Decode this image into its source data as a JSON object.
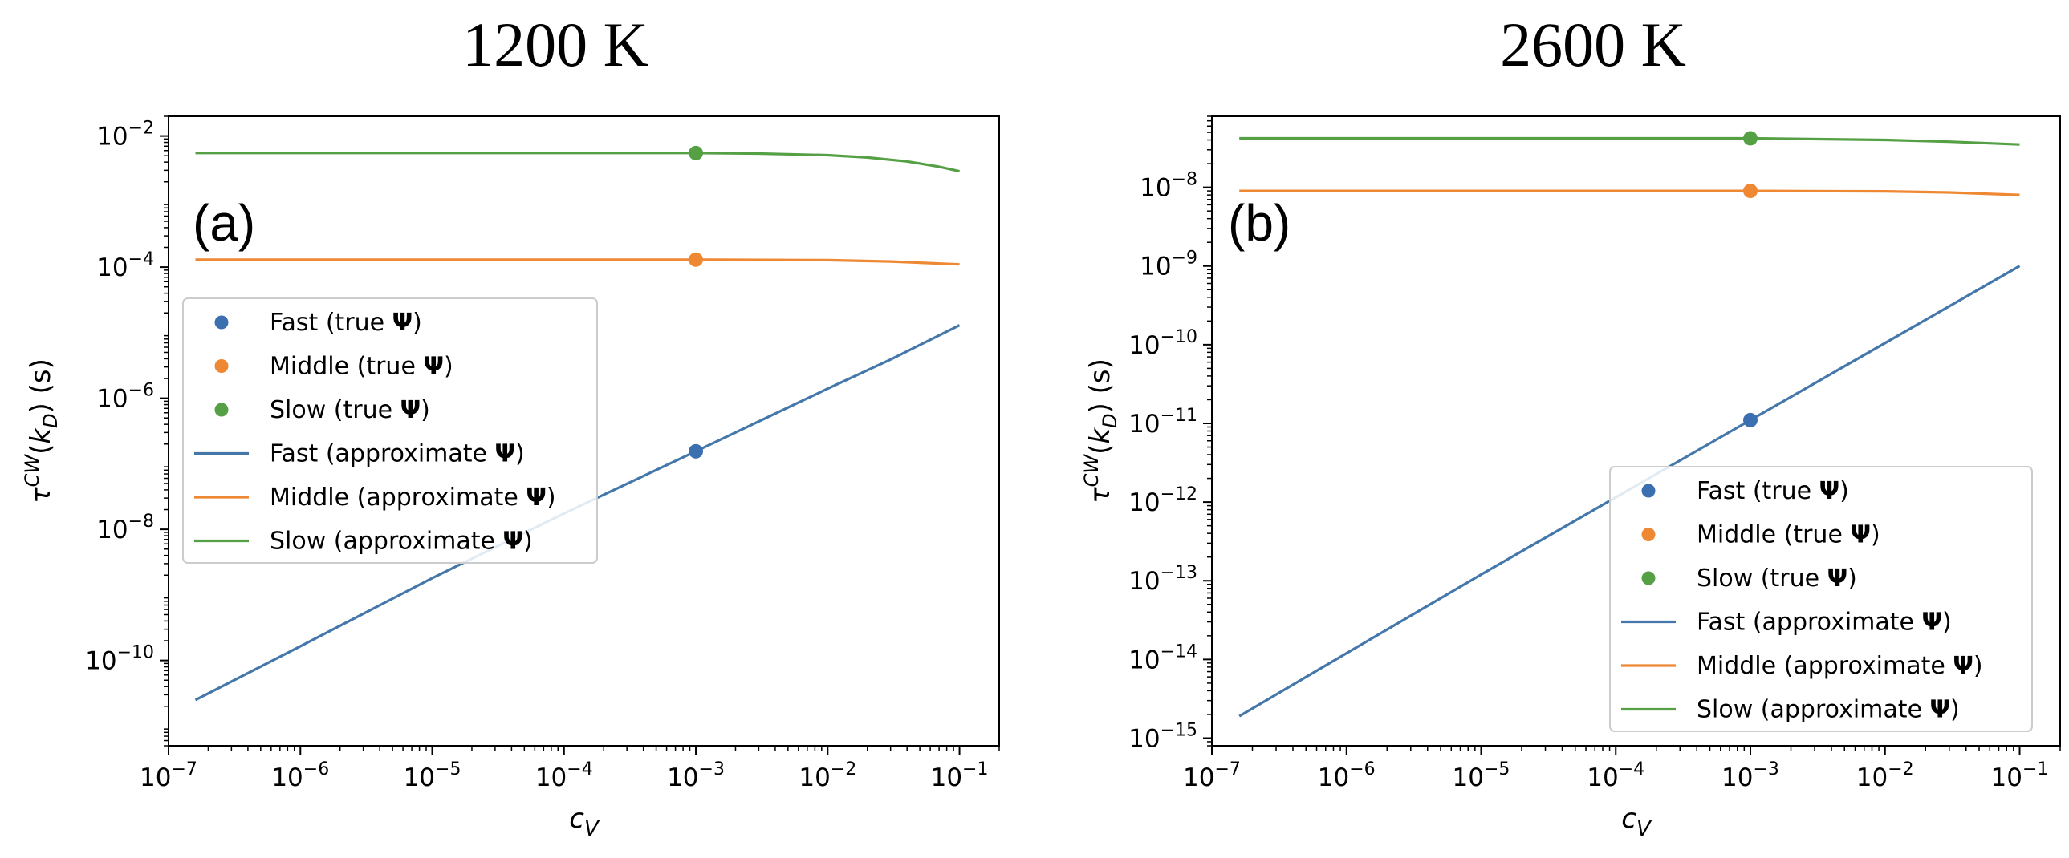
{
  "chart_data": [
    {
      "type": "line",
      "title": "1200 K",
      "panel_label": "(a)",
      "xlabel_base": "c",
      "xlabel_sub": "V",
      "ylabel": "τ^{CW}(k_D) (s)",
      "ylabel_parts": {
        "base": "τ",
        "sup": "CW",
        "open": "(",
        "vec": "k",
        "sub": "D",
        "close": ") (s)"
      },
      "xscale": "log",
      "yscale": "log",
      "xlim": [
        1e-07,
        0.2
      ],
      "ylim": [
        5e-12,
        0.02
      ],
      "xticks": [
        {
          "base": "10",
          "exp": "−7",
          "value": 1e-07
        },
        {
          "base": "10",
          "exp": "−6",
          "value": 1e-06
        },
        {
          "base": "10",
          "exp": "−5",
          "value": 1e-05
        },
        {
          "base": "10",
          "exp": "−4",
          "value": 0.0001
        },
        {
          "base": "10",
          "exp": "−3",
          "value": 0.001
        },
        {
          "base": "10",
          "exp": "−2",
          "value": 0.01
        },
        {
          "base": "10",
          "exp": "−1",
          "value": 0.1
        }
      ],
      "yticks": [
        {
          "base": "10",
          "exp": "−10",
          "value": 1e-10
        },
        {
          "base": "10",
          "exp": "−8",
          "value": 1e-08
        },
        {
          "base": "10",
          "exp": "−6",
          "value": 1e-06
        },
        {
          "base": "10",
          "exp": "−4",
          "value": 0.0001
        },
        {
          "base": "10",
          "exp": "−2",
          "value": 0.01
        }
      ],
      "series": [
        {
          "name": "Fast (approximate Ψ)",
          "label": "Fast (approximate ",
          "color": "#4477aa",
          "kind": "line",
          "x": [
            1.6e-07,
            1e-06,
            1e-05,
            0.0001,
            0.001,
            0.01,
            0.03,
            0.1
          ],
          "y": [
            2.5e-11,
            1.65e-10,
            1.8e-09,
            1.75e-08,
            1.55e-07,
            1.4e-06,
            3.9e-06,
            1.3e-05
          ]
        },
        {
          "name": "Middle (approximate Ψ)",
          "label": "Middle (approximate ",
          "color": "#ee8833",
          "kind": "line",
          "x": [
            1.6e-07,
            1e-05,
            0.0001,
            0.001,
            0.01,
            0.03,
            0.1
          ],
          "y": [
            0.00013,
            0.00013,
            0.00013,
            0.00013,
            0.000128,
            0.000122,
            0.00011
          ]
        },
        {
          "name": "Slow (approximate Ψ)",
          "label": "Slow (approximate ",
          "color": "#55a045",
          "kind": "line",
          "x": [
            1.6e-07,
            1e-05,
            0.0001,
            0.001,
            0.003,
            0.01,
            0.02,
            0.04,
            0.07,
            0.1
          ],
          "y": [
            0.0055,
            0.0055,
            0.0055,
            0.0055,
            0.0054,
            0.0051,
            0.0047,
            0.0041,
            0.0034,
            0.0029
          ]
        },
        {
          "name": "Fast (true Ψ)",
          "label": "Fast (true ",
          "color": "#3b6fb0",
          "kind": "point",
          "x": [
            0.001
          ],
          "y": [
            1.55e-07
          ]
        },
        {
          "name": "Middle (true Ψ)",
          "label": "Middle (true ",
          "color": "#ee8833",
          "kind": "point",
          "x": [
            0.001
          ],
          "y": [
            0.00013
          ]
        },
        {
          "name": "Slow (true Ψ)",
          "label": "Slow (true ",
          "color": "#55a045",
          "kind": "point",
          "x": [
            0.001
          ],
          "y": [
            0.0055
          ]
        }
      ],
      "legend_order": [
        3,
        4,
        5,
        0,
        1,
        2
      ],
      "legend_symbol": "Ψ",
      "legend_close": ")",
      "legend_position": "center-left"
    },
    {
      "type": "line",
      "title": "2600 K",
      "panel_label": "(b)",
      "xlabel_base": "c",
      "xlabel_sub": "V",
      "ylabel": "τ^{CW}(k_D) (s)",
      "ylabel_parts": {
        "base": "τ",
        "sup": "CW",
        "open": "(",
        "vec": "k",
        "sub": "D",
        "close": ") (s)"
      },
      "xscale": "log",
      "yscale": "log",
      "xlim": [
        1e-07,
        0.2
      ],
      "ylim": [
        8e-16,
        8e-08
      ],
      "xticks": [
        {
          "base": "10",
          "exp": "−7",
          "value": 1e-07
        },
        {
          "base": "10",
          "exp": "−6",
          "value": 1e-06
        },
        {
          "base": "10",
          "exp": "−5",
          "value": 1e-05
        },
        {
          "base": "10",
          "exp": "−4",
          "value": 0.0001
        },
        {
          "base": "10",
          "exp": "−3",
          "value": 0.001
        },
        {
          "base": "10",
          "exp": "−2",
          "value": 0.01
        },
        {
          "base": "10",
          "exp": "−1",
          "value": 0.1
        }
      ],
      "yticks": [
        {
          "base": "10",
          "exp": "−15",
          "value": 1e-15
        },
        {
          "base": "10",
          "exp": "−14",
          "value": 1e-14
        },
        {
          "base": "10",
          "exp": "−13",
          "value": 1e-13
        },
        {
          "base": "10",
          "exp": "−12",
          "value": 1e-12
        },
        {
          "base": "10",
          "exp": "−11",
          "value": 1e-11
        },
        {
          "base": "10",
          "exp": "−10",
          "value": 1e-10
        },
        {
          "base": "10",
          "exp": "−9",
          "value": 1e-09
        },
        {
          "base": "10",
          "exp": "−8",
          "value": 1e-08
        }
      ],
      "series": [
        {
          "name": "Fast (approximate Ψ)",
          "label": "Fast (approximate ",
          "color": "#4477aa",
          "kind": "line",
          "x": [
            1.6e-07,
            1e-06,
            1e-05,
            0.0001,
            0.001,
            0.01,
            0.1
          ],
          "y": [
            1.9e-15,
            1.2e-14,
            1.2e-13,
            1.15e-12,
            1.1e-11,
            1.05e-10,
            1e-09
          ]
        },
        {
          "name": "Middle (approximate Ψ)",
          "label": "Middle (approximate ",
          "color": "#ee8833",
          "kind": "line",
          "x": [
            1.6e-07,
            0.0001,
            0.001,
            0.01,
            0.03,
            0.1
          ],
          "y": [
            9e-09,
            9e-09,
            9e-09,
            8.9e-09,
            8.6e-09,
            8e-09
          ]
        },
        {
          "name": "Slow (approximate Ψ)",
          "label": "Slow (approximate ",
          "color": "#55a045",
          "kind": "line",
          "x": [
            1.6e-07,
            0.0001,
            0.001,
            0.01,
            0.03,
            0.1
          ],
          "y": [
            4.2e-08,
            4.2e-08,
            4.2e-08,
            4e-08,
            3.8e-08,
            3.5e-08
          ]
        },
        {
          "name": "Fast (true Ψ)",
          "label": "Fast (true ",
          "color": "#3b6fb0",
          "kind": "point",
          "x": [
            0.001
          ],
          "y": [
            1.1e-11
          ]
        },
        {
          "name": "Middle (true Ψ)",
          "label": "Middle (true ",
          "color": "#ee8833",
          "kind": "point",
          "x": [
            0.001
          ],
          "y": [
            9e-09
          ]
        },
        {
          "name": "Slow (true Ψ)",
          "label": "Slow (true ",
          "color": "#55a045",
          "kind": "point",
          "x": [
            0.001
          ],
          "y": [
            4.2e-08
          ]
        }
      ],
      "legend_order": [
        3,
        4,
        5,
        0,
        1,
        2
      ],
      "legend_symbol": "Ψ",
      "legend_close": ")",
      "legend_position": "lower-right"
    }
  ]
}
